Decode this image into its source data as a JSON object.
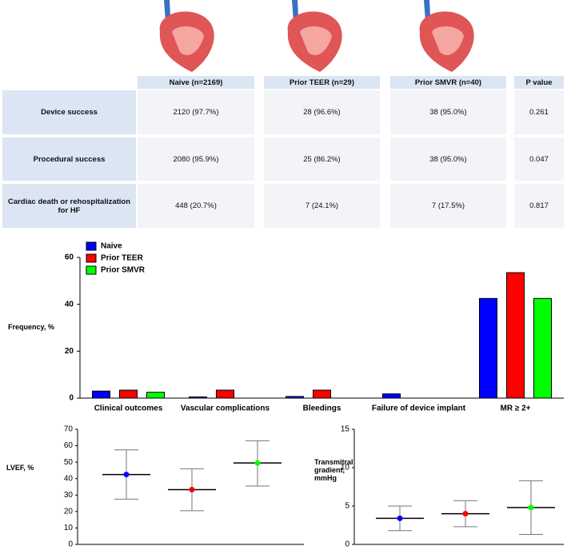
{
  "table": {
    "header": [
      "Naive (n=2169)",
      "Prior TEER (n=29)",
      "Prior SMVR (n=40)",
      "P value"
    ],
    "rows": [
      [
        "Device success",
        "2120 (97.7%)",
        "28 (96.6%)",
        "38 (95.0%)",
        "0.261"
      ],
      [
        "Procedural success",
        "2080 (95.9%)",
        "25 (86.2%)",
        "38 (95.0%)",
        "0.047"
      ],
      [
        "Cardiac death or rehospitalization for HF",
        "448 (20.7%)",
        "7 (24.1%)",
        "7 (17.5%)",
        "0.817"
      ]
    ]
  },
  "chart_data": [
    {
      "type": "bar",
      "ylabel": "Frequency, %",
      "categories": [
        "Clinical outcomes",
        "Vascular complications",
        "Bleedings",
        "Failure of device implant",
        "MR ≥ 2+"
      ],
      "series": [
        {
          "name": "Naive",
          "color": "#0000ff",
          "values": [
            3,
            0.5,
            0.7,
            1.8,
            42.5
          ]
        },
        {
          "name": "Prior TEER",
          "color": "#ff0000",
          "values": [
            3.4,
            3.4,
            3.4,
            0,
            53.5
          ]
        },
        {
          "name": "Prior SMVR",
          "color": "#00ff00",
          "values": [
            2.5,
            0,
            0,
            0,
            42.5
          ]
        }
      ],
      "ylim": [
        0,
        60
      ],
      "yticks": [
        0,
        20,
        40,
        60
      ]
    },
    {
      "type": "errorbar",
      "ylabel": "LVEF, %",
      "values": [
        42.5,
        33.3,
        49.5
      ],
      "low": [
        27.5,
        20.5,
        35.5
      ],
      "high": [
        57.5,
        46,
        63
      ],
      "colors": [
        "#0000ff",
        "#ff0000",
        "#00ff00"
      ],
      "ylim": [
        0,
        70
      ],
      "yticks": [
        0,
        10,
        20,
        30,
        40,
        50,
        60,
        70
      ]
    },
    {
      "type": "errorbar",
      "ylabel": "Transmitral gradient, mmHg",
      "values": [
        3.4,
        4.0,
        4.8
      ],
      "low": [
        1.8,
        2.3,
        1.3
      ],
      "high": [
        5.0,
        5.7,
        8.3
      ],
      "colors": [
        "#0000ff",
        "#ff0000",
        "#00ff00"
      ],
      "ylim": [
        0,
        15
      ],
      "yticks": [
        0,
        5,
        10,
        15
      ]
    }
  ]
}
